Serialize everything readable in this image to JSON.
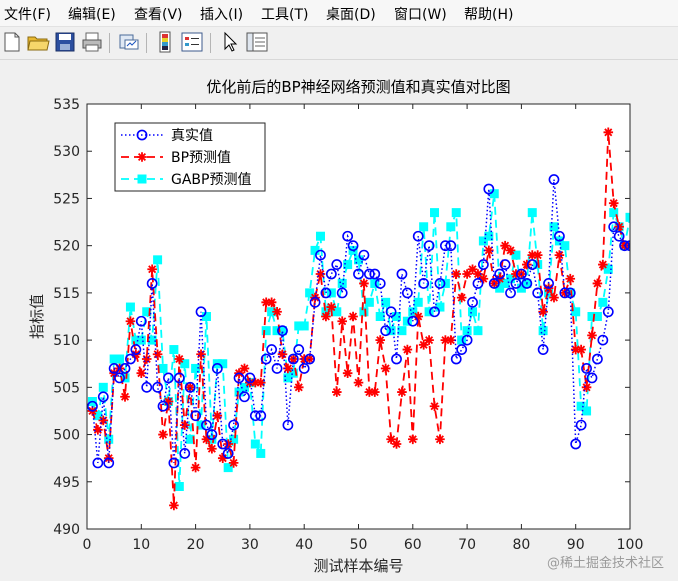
{
  "menu": [
    "文件(F)",
    "编辑(E)",
    "查看(V)",
    "插入(I)",
    "工具(T)",
    "桌面(D)",
    "窗口(W)",
    "帮助(H)"
  ],
  "toolbar": {
    "icons": [
      "new-file-icon",
      "open-folder-icon",
      "save-icon",
      "print-icon",
      "link-plot-icon",
      "insert-colorbar-icon",
      "insert-legend-icon",
      "pointer-icon",
      "property-editor-icon"
    ]
  },
  "watermark": "@稀土掘金技术社区",
  "colors": {
    "real": "#0000ff",
    "bp": "#ff0000",
    "gabp": "#00ffff"
  },
  "chart_data": {
    "type": "line",
    "title": "优化前后的BP神经网络预测值和真实值对比图",
    "xlabel": "测试样本编号",
    "ylabel": "指标值",
    "xlim": [
      0,
      100
    ],
    "ylim": [
      490,
      535
    ],
    "xticks": [
      0,
      10,
      20,
      30,
      40,
      50,
      60,
      70,
      80,
      90,
      100
    ],
    "yticks": [
      490,
      495,
      500,
      505,
      510,
      515,
      520,
      525,
      530,
      535
    ],
    "legend_position": "top-left",
    "x": [
      1,
      2,
      3,
      4,
      5,
      6,
      7,
      8,
      9,
      10,
      11,
      12,
      13,
      14,
      15,
      16,
      17,
      18,
      19,
      20,
      21,
      22,
      23,
      24,
      25,
      26,
      27,
      28,
      29,
      30,
      31,
      32,
      33,
      34,
      35,
      36,
      37,
      38,
      39,
      40,
      41,
      42,
      43,
      44,
      45,
      46,
      47,
      48,
      49,
      50,
      51,
      52,
      53,
      54,
      55,
      56,
      57,
      58,
      59,
      60,
      61,
      62,
      63,
      64,
      65,
      66,
      67,
      68,
      69,
      70,
      71,
      72,
      73,
      74,
      75,
      76,
      77,
      78,
      79,
      80,
      81,
      82,
      83,
      84,
      85,
      86,
      87,
      88,
      89,
      90,
      91,
      92,
      93,
      94,
      95,
      96,
      97,
      98,
      99,
      100
    ],
    "series": [
      {
        "name": "真实值",
        "style": "dotted-circle",
        "values": [
          503,
          497,
          504,
          497,
          507,
          506,
          507,
          508,
          509,
          512,
          505,
          516,
          505,
          503,
          506,
          497,
          506,
          498,
          505,
          502,
          513,
          501,
          500,
          507,
          499,
          498,
          501,
          506,
          504,
          506,
          502,
          502,
          508,
          509,
          507,
          511,
          501,
          508,
          509,
          507,
          508,
          514,
          519,
          515,
          517,
          518,
          515,
          521,
          520,
          517,
          519,
          517,
          517,
          516,
          511,
          513,
          508,
          517,
          515,
          512,
          521,
          516,
          520,
          513,
          516,
          520,
          520,
          508,
          509,
          510,
          514,
          516,
          518,
          526,
          516,
          517,
          518,
          515,
          516,
          517,
          516,
          518,
          515,
          509,
          516,
          527,
          521,
          515,
          515,
          499,
          501,
          507,
          506,
          508,
          510,
          513,
          522,
          521,
          520,
          520
        ]
      },
      {
        "name": "BP预测值",
        "style": "dashed-star",
        "values": [
          502.5,
          500.5,
          501.5,
          497.5,
          506.5,
          507,
          504,
          512,
          508.5,
          506.5,
          508,
          517.5,
          508.5,
          500,
          503.5,
          492.5,
          508,
          501,
          505,
          496.5,
          508.5,
          499.5,
          498.5,
          502,
          497.5,
          499,
          497,
          506.5,
          507,
          505.5,
          505.5,
          505.5,
          514,
          514,
          513,
          508.5,
          507,
          508,
          505,
          508,
          508,
          514.5,
          517,
          512.5,
          513.5,
          504.5,
          512,
          506.5,
          512.5,
          505.5,
          516,
          504.5,
          504.5,
          510,
          507,
          499.5,
          499,
          504.5,
          509,
          499.5,
          512.5,
          509.5,
          510,
          503,
          499.5,
          510,
          510,
          517,
          514.5,
          517,
          517.5,
          517,
          516.5,
          519.5,
          516,
          516.5,
          520,
          519.5,
          517,
          517,
          518,
          519,
          519,
          513,
          515.5,
          514.5,
          519,
          515,
          516.5,
          509,
          509,
          505,
          510.5,
          516,
          518,
          532,
          524.5,
          522,
          520,
          520
        ]
      },
      {
        "name": "GABP预测值",
        "style": "dashed-square",
        "values": [
          503.5,
          502,
          505,
          499.5,
          508,
          508,
          506,
          513.5,
          510,
          510,
          513,
          510,
          518.5,
          507,
          503.5,
          509,
          494.5,
          507.5,
          499.5,
          507,
          501,
          512.5,
          499.5,
          507.5,
          507.5,
          496.5,
          499.5,
          504.5,
          505,
          505.5,
          499,
          498,
          511,
          513,
          511,
          511,
          506,
          506.5,
          511.5,
          511.5,
          515,
          519.5,
          521,
          513,
          515,
          513,
          516,
          518,
          519.5,
          518.5,
          513,
          514,
          516,
          512.5,
          514,
          511,
          512.5,
          511,
          512,
          513,
          514,
          522,
          513,
          523.5,
          513.5,
          516,
          522,
          523.5,
          510,
          511,
          513,
          511,
          520.5,
          521,
          525.5,
          515.5,
          516,
          516.5,
          519,
          515.5,
          516,
          523.5,
          518,
          511,
          515,
          522,
          520.5,
          520,
          515,
          513,
          503,
          502.5,
          512.5,
          512.5,
          514,
          517.5,
          523.5,
          522,
          520,
          523
        ]
      }
    ]
  }
}
